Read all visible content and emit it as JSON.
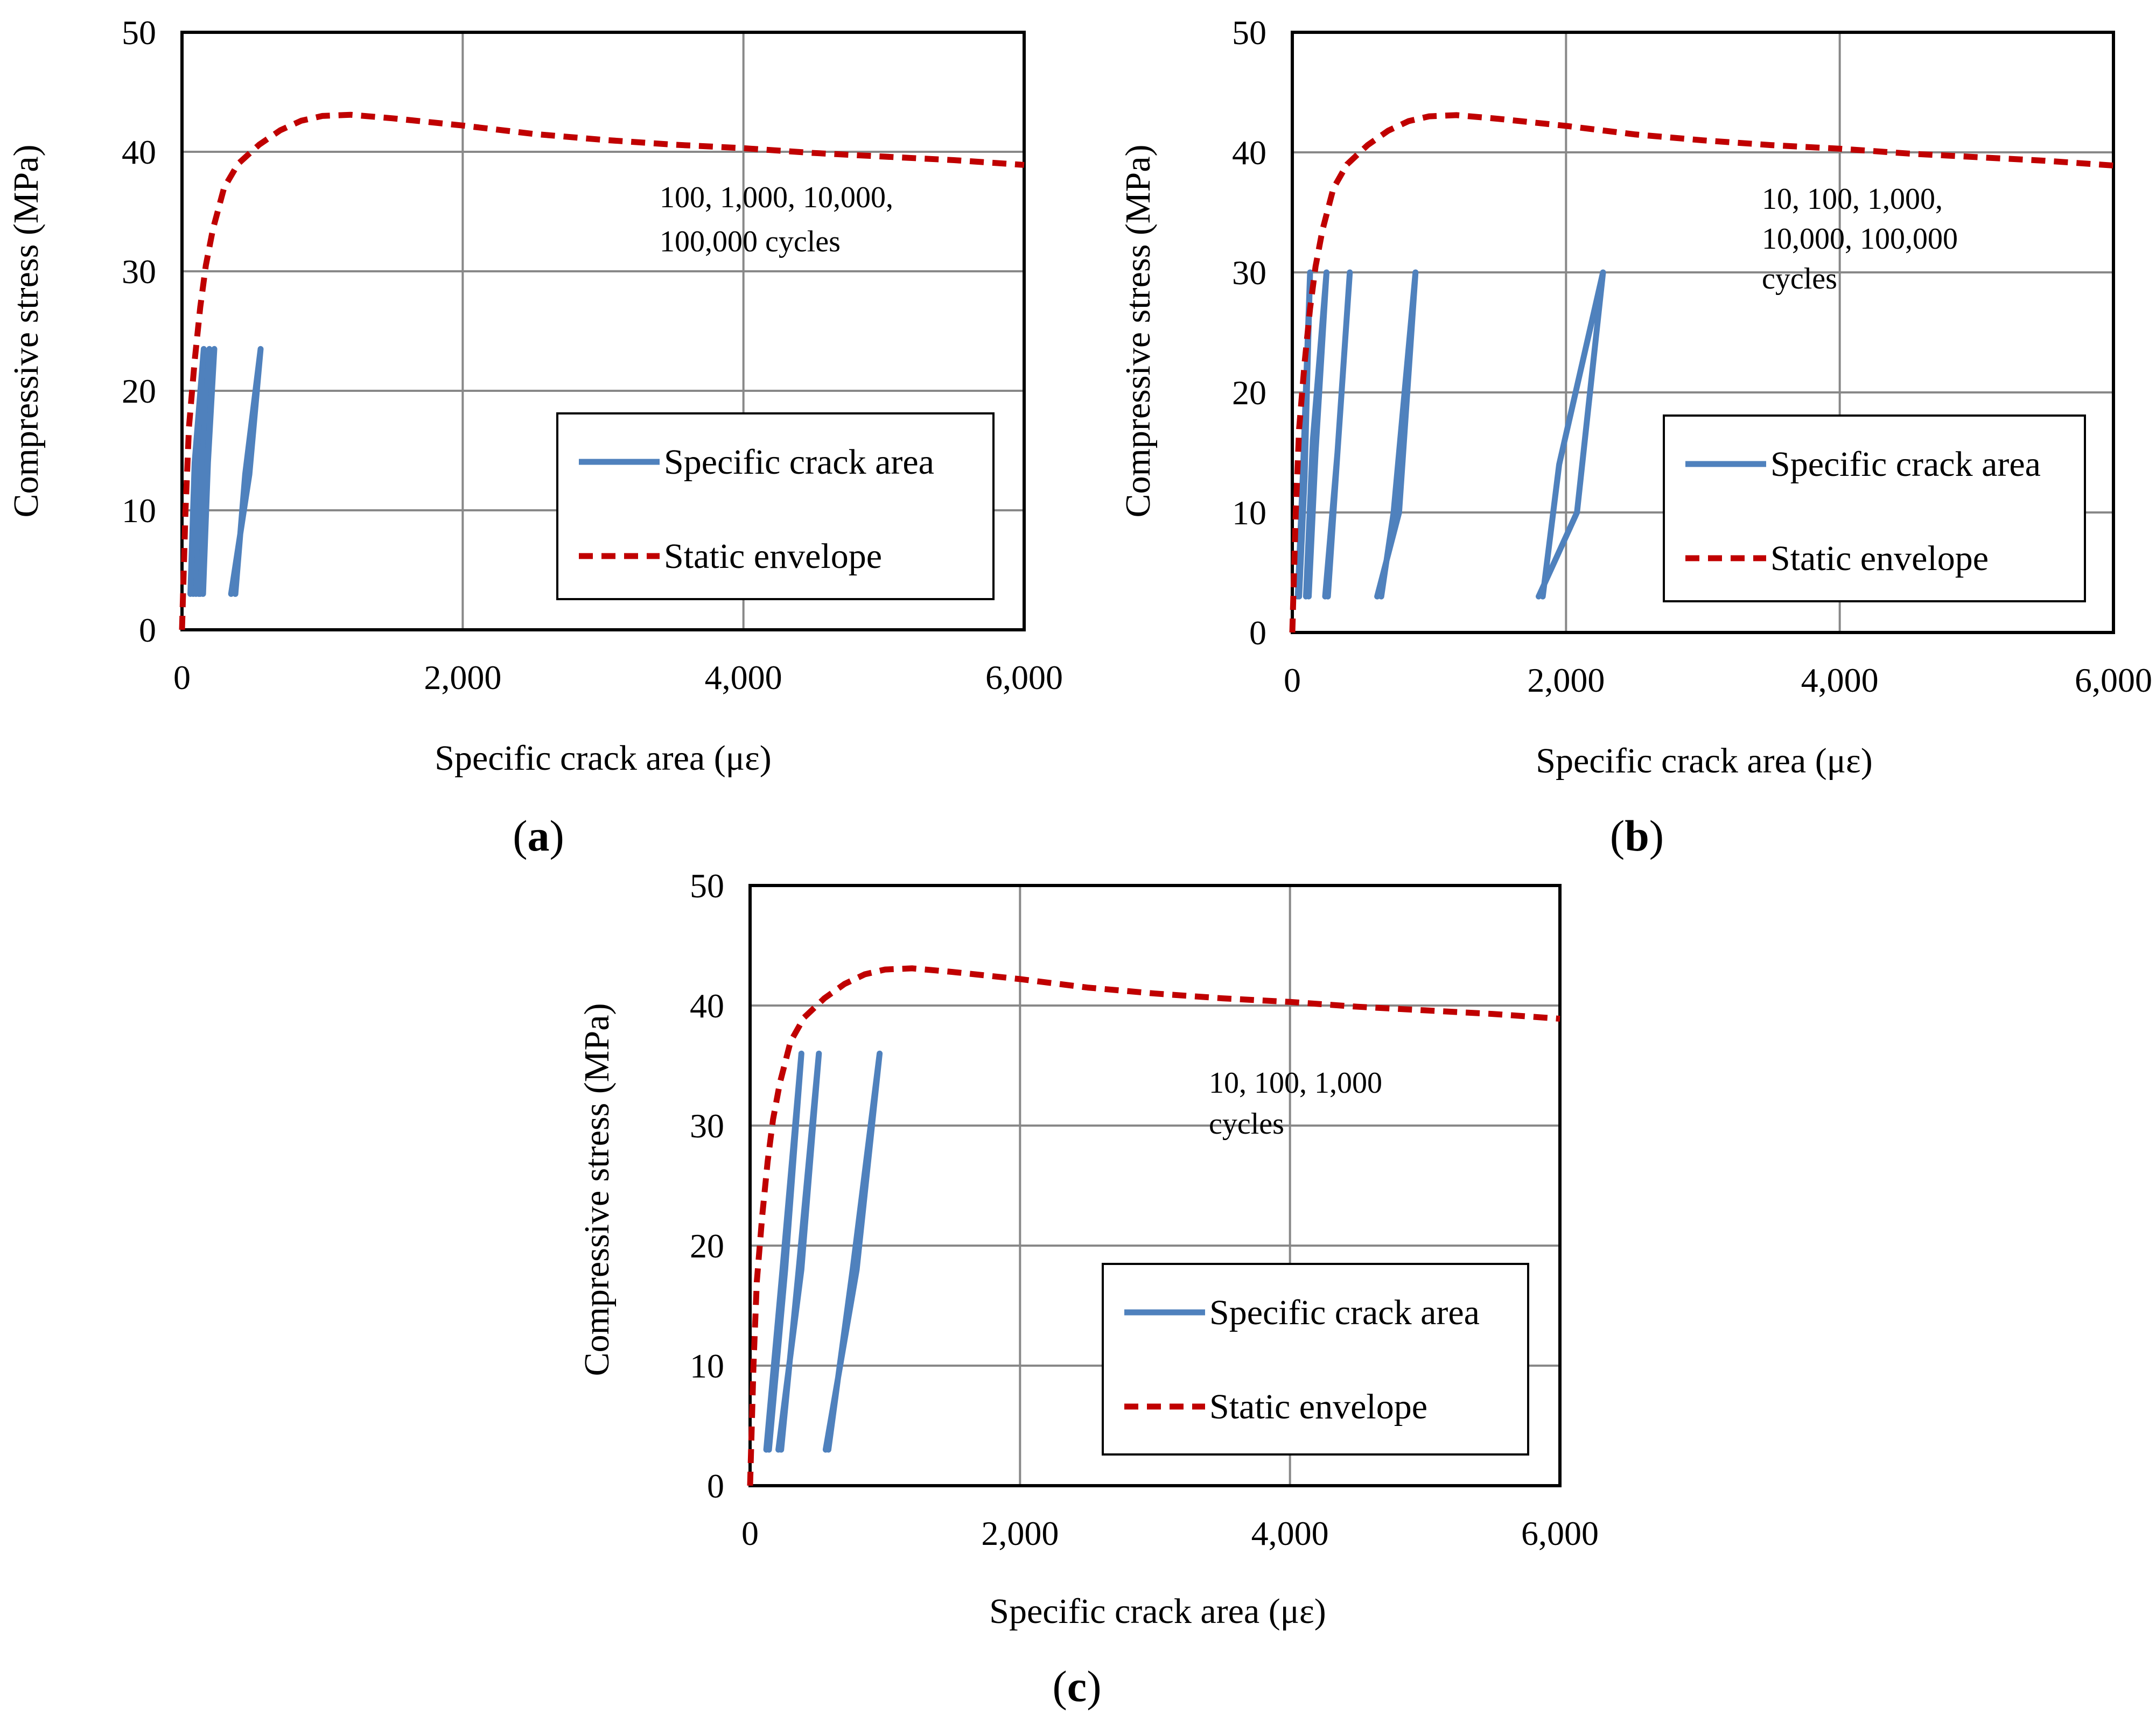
{
  "colors": {
    "crack_series": "#4F81BD",
    "envelope_series": "#C00000",
    "grid": "#888888",
    "frame": "#000000"
  },
  "chart_data": [
    {
      "panel_label": "(a)",
      "panel_letter": "a",
      "type": "line",
      "xlabel": "Specific crack area (με)",
      "ylabel": "Compressive stress (MPa)",
      "xlim": [
        0,
        6000
      ],
      "ylim": [
        0,
        50
      ],
      "xticks": [
        0,
        2000,
        4000,
        6000
      ],
      "xtick_labels": [
        "0",
        "2,000",
        "4,000",
        "6,000"
      ],
      "yticks": [
        0,
        10,
        20,
        30,
        40,
        50
      ],
      "ytick_labels": [
        "0",
        "10",
        "20",
        "30",
        "40",
        "50"
      ],
      "grid": true,
      "legend_position": "lower-right",
      "legend": [
        {
          "label": "Specific crack area",
          "style": "solid",
          "color": "#4F81BD"
        },
        {
          "label": "Static envelope",
          "style": "dashed",
          "color": "#C00000"
        }
      ],
      "annotation": [
        "100,  1,000,  10,000,",
        "100,000 cycles"
      ],
      "series": [
        {
          "name": "Specific crack area",
          "style": "solid",
          "color": "#4F81BD",
          "loops": [
            {
              "x": [
                80,
                120,
                155,
                90,
                60
              ],
              "y": [
                3,
                15,
                23.5,
                14,
                3
              ]
            },
            {
              "x": [
                120,
                160,
                195,
                140,
                100
              ],
              "y": [
                3,
                14,
                23.5,
                13,
                3
              ]
            },
            {
              "x": [
                150,
                185,
                230,
                180,
                130
              ],
              "y": [
                3,
                14,
                23.5,
                14,
                3
              ]
            },
            {
              "x": [
                380,
                450,
                560,
                480,
                350
              ],
              "y": [
                3,
                13,
                23.5,
                13,
                3
              ]
            }
          ]
        },
        {
          "name": "Static envelope",
          "style": "dashed",
          "color": "#C00000",
          "x": [
            0,
            25,
            50,
            90,
            130,
            170,
            220,
            300,
            400,
            550,
            700,
            850,
            1000,
            1200,
            1500,
            2000,
            2500,
            3000,
            3500,
            4000,
            4500,
            5000,
            5500,
            6000
          ],
          "y": [
            0,
            10,
            17,
            22.5,
            27,
            30.5,
            33.5,
            37,
            39,
            40.6,
            41.8,
            42.6,
            43,
            43.1,
            42.8,
            42.2,
            41.5,
            41,
            40.6,
            40.3,
            39.9,
            39.6,
            39.3,
            38.9
          ]
        }
      ]
    },
    {
      "panel_label": "(b)",
      "panel_letter": "b",
      "type": "line",
      "xlabel": "Specific crack area (με)",
      "ylabel": "Compressive stress (MPa)",
      "xlim": [
        0,
        6000
      ],
      "ylim": [
        0,
        50
      ],
      "xticks": [
        0,
        2000,
        4000,
        6000
      ],
      "xtick_labels": [
        "0",
        "2,000",
        "4,000",
        "6,000"
      ],
      "yticks": [
        0,
        10,
        20,
        30,
        40,
        50
      ],
      "ytick_labels": [
        "0",
        "10",
        "20",
        "30",
        "40",
        "50"
      ],
      "grid": true,
      "legend_position": "lower-right",
      "legend": [
        {
          "label": "Specific crack area",
          "style": "solid",
          "color": "#4F81BD"
        },
        {
          "label": "Static envelope",
          "style": "dashed",
          "color": "#C00000"
        }
      ],
      "annotation": [
        "10,  100,  1,000,",
        "10,000,  100,000",
        "cycles"
      ],
      "series": [
        {
          "name": "Specific crack area",
          "style": "solid",
          "color": "#4F81BD",
          "loops": [
            {
              "x": [
                40,
                80,
                130,
                90,
                50
              ],
              "y": [
                3,
                14,
                30,
                13,
                3
              ]
            },
            {
              "x": [
                100,
                150,
                250,
                170,
                120
              ],
              "y": [
                3,
                16,
                30,
                15,
                3
              ]
            },
            {
              "x": [
                260,
                330,
                420,
                330,
                240
              ],
              "y": [
                3,
                15,
                30,
                15,
                3
              ]
            },
            {
              "x": [
                650,
                740,
                900,
                780,
                620
              ],
              "y": [
                3,
                10,
                30,
                10,
                3
              ]
            },
            {
              "x": [
                1830,
                1950,
                2270,
                2080,
                1800
              ],
              "y": [
                3,
                14,
                30,
                10,
                3
              ]
            }
          ]
        },
        {
          "name": "Static envelope",
          "style": "dashed",
          "color": "#C00000",
          "x": [
            0,
            25,
            50,
            90,
            130,
            170,
            220,
            300,
            400,
            550,
            700,
            850,
            1000,
            1200,
            1500,
            2000,
            2500,
            3000,
            3500,
            4000,
            4500,
            5000,
            5500,
            6000
          ],
          "y": [
            0,
            10,
            17,
            22.5,
            27,
            30.5,
            33.5,
            37,
            39,
            40.6,
            41.8,
            42.6,
            43,
            43.1,
            42.8,
            42.2,
            41.5,
            41,
            40.6,
            40.3,
            39.9,
            39.6,
            39.3,
            38.9
          ]
        }
      ]
    },
    {
      "panel_label": "(c)",
      "panel_letter": "c",
      "type": "line",
      "xlabel": "Specific crack area (με)",
      "ylabel": "Compressive stress (MPa)",
      "xlim": [
        0,
        6000
      ],
      "ylim": [
        0,
        50
      ],
      "xticks": [
        0,
        2000,
        4000,
        6000
      ],
      "xtick_labels": [
        "0",
        "2,000",
        "4,000",
        "6,000"
      ],
      "yticks": [
        0,
        10,
        20,
        30,
        40,
        50
      ],
      "ytick_labels": [
        "0",
        "10",
        "20",
        "30",
        "40",
        "50"
      ],
      "grid": true,
      "legend_position": "lower-right",
      "legend": [
        {
          "label": "Specific crack area",
          "style": "solid",
          "color": "#4F81BD"
        },
        {
          "label": "Static envelope",
          "style": "dashed",
          "color": "#C00000"
        }
      ],
      "annotation": [
        "10,  100,  1,000",
        "cycles"
      ],
      "series": [
        {
          "name": "Specific crack area",
          "style": "solid",
          "color": "#4F81BD",
          "loops": [
            {
              "x": [
                120,
                240,
                380,
                260,
                140
              ],
              "y": [
                3,
                18,
                36,
                18,
                3
              ]
            },
            {
              "x": [
                230,
                360,
                510,
                380,
                210
              ],
              "y": [
                3,
                18,
                36,
                18,
                3
              ]
            },
            {
              "x": [
                580,
                760,
                960,
                790,
                560
              ],
              "y": [
                3,
                18,
                36,
                18,
                3
              ]
            }
          ]
        },
        {
          "name": "Static envelope",
          "style": "dashed",
          "color": "#C00000",
          "x": [
            0,
            25,
            50,
            90,
            130,
            170,
            220,
            300,
            400,
            550,
            700,
            850,
            1000,
            1200,
            1500,
            2000,
            2500,
            3000,
            3500,
            4000,
            4500,
            5000,
            5500,
            6000
          ],
          "y": [
            0,
            10,
            17,
            22.5,
            27,
            30.5,
            33.5,
            37,
            39,
            40.6,
            41.8,
            42.6,
            43,
            43.1,
            42.8,
            42.2,
            41.5,
            41,
            40.6,
            40.3,
            39.9,
            39.6,
            39.3,
            38.9
          ]
        }
      ]
    }
  ]
}
